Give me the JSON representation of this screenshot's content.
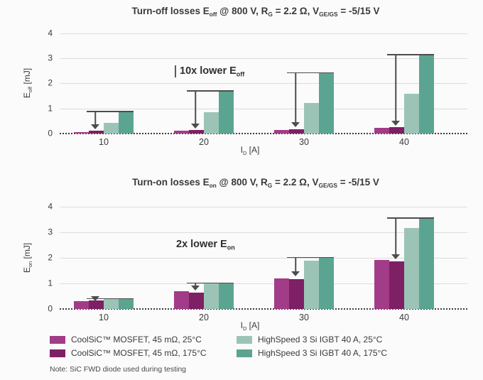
{
  "colors": {
    "series": {
      "coolsic_25": "#a23c88",
      "coolsic_175": "#7d2064",
      "igbt_25": "#9cc4b6",
      "igbt_175": "#5ca492"
    },
    "grid": "#dcdcdc",
    "zero_line": "#3d3d3d",
    "arrow": "#4d4d4d",
    "text": "#3a3a3a",
    "background": "#fbfbfb"
  },
  "legend": {
    "items": [
      {
        "label": "CoolSiC™ MOSFET, 45 mΩ, 25°C",
        "color_key": "coolsic_25"
      },
      {
        "label": "CoolSiC™ MOSFET, 45 mΩ, 175°C",
        "color_key": "coolsic_175"
      },
      {
        "label": "HighSpeed 3 Si IGBT 40 A, 25°C",
        "color_key": "igbt_25"
      },
      {
        "label": "HighSpeed 3 Si IGBT 40 A, 175°C",
        "color_key": "igbt_175"
      }
    ],
    "note": "Note: SiC FWD diode used during testing"
  },
  "chart_data": [
    {
      "type": "bar",
      "title": "Turn-off losses E_off @ 800 V, R_G = 2.2 Ω, V_GE/GS = -5/15 V",
      "title_parts": [
        {
          "t": "Turn-off losses E"
        },
        {
          "s": "off"
        },
        {
          "t": " @ 800 V, R"
        },
        {
          "s": "G"
        },
        {
          "t": " = 2.2 Ω, V"
        },
        {
          "s": "GE/GS"
        },
        {
          "t": " = -5/15 V"
        }
      ],
      "ylabel": "E_off [mJ]",
      "ylabel_parts": [
        {
          "t": "E"
        },
        {
          "s": "off"
        },
        {
          "t": " [mJ]"
        }
      ],
      "xlabel": "I_D [A]",
      "xlabel_parts": [
        {
          "t": "I"
        },
        {
          "s": "D"
        },
        {
          "t": " [A]"
        }
      ],
      "annotation": "10x lower E_off",
      "annotation_parts": [
        {
          "t": "10x lower E"
        },
        {
          "s": "off"
        }
      ],
      "categories": [
        "10",
        "20",
        "30",
        "40"
      ],
      "series": [
        {
          "name": "CoolSiC™ MOSFET, 45 mΩ, 25°C",
          "color_key": "coolsic_25",
          "values": [
            0.07,
            0.1,
            0.14,
            0.22
          ]
        },
        {
          "name": "CoolSiC™ MOSFET, 45 mΩ, 175°C",
          "color_key": "coolsic_175",
          "values": [
            0.1,
            0.13,
            0.17,
            0.25
          ]
        },
        {
          "name": "HighSpeed 3 Si IGBT 40 A, 25°C",
          "color_key": "igbt_25",
          "values": [
            0.42,
            0.85,
            1.22,
            1.6
          ]
        },
        {
          "name": "HighSpeed 3 Si IGBT 40 A, 175°C",
          "color_key": "igbt_175",
          "values": [
            0.9,
            1.72,
            2.45,
            3.17
          ]
        }
      ],
      "ylim": [
        0,
        4
      ],
      "yticks": [
        0,
        1,
        2,
        3,
        4
      ],
      "grid": true,
      "arrows": [
        {
          "group": 0,
          "from": 0.9,
          "to": 0.16
        },
        {
          "group": 1,
          "from": 1.72,
          "to": 0.2
        },
        {
          "group": 2,
          "from": 2.45,
          "to": 0.25
        },
        {
          "group": 3,
          "from": 3.17,
          "to": 0.32
        }
      ]
    },
    {
      "type": "bar",
      "title": "Turn-on losses E_on @ 800 V, R_G = 2.2 Ω, V_GE/GS = -5/15 V",
      "title_parts": [
        {
          "t": "Turn-on losses E"
        },
        {
          "s": "on"
        },
        {
          "t": " @ 800 V, R"
        },
        {
          "s": "G"
        },
        {
          "t": " = 2.2 Ω, V"
        },
        {
          "s": "GE/GS"
        },
        {
          "t": " = -5/15 V"
        }
      ],
      "ylabel": "E_on [mJ]",
      "ylabel_parts": [
        {
          "t": "E"
        },
        {
          "s": "on"
        },
        {
          "t": " [mJ]"
        }
      ],
      "xlabel": "I_D [A]",
      "xlabel_parts": [
        {
          "t": "I"
        },
        {
          "s": "D"
        },
        {
          "t": " [A]"
        }
      ],
      "annotation": "2x lower E_on",
      "annotation_parts": [
        {
          "t": "2x lower E"
        },
        {
          "s": "on"
        }
      ],
      "categories": [
        "10",
        "20",
        "30",
        "40"
      ],
      "series": [
        {
          "name": "CoolSiC™ MOSFET, 45 mΩ, 25°C",
          "color_key": "coolsic_25",
          "values": [
            0.3,
            0.7,
            1.19,
            1.92
          ]
        },
        {
          "name": "CoolSiC™ MOSFET, 45 mΩ, 175°C",
          "color_key": "coolsic_175",
          "values": [
            0.33,
            0.64,
            1.17,
            1.86
          ]
        },
        {
          "name": "HighSpeed 3 Si IGBT 40 A, 25°C",
          "color_key": "igbt_25",
          "values": [
            0.38,
            1.01,
            1.89,
            3.17
          ]
        },
        {
          "name": "HighSpeed 3 Si IGBT 40 A, 175°C",
          "color_key": "igbt_175",
          "values": [
            0.43,
            1.04,
            2.03,
            3.57
          ]
        }
      ],
      "ylim": [
        0,
        4
      ],
      "yticks": [
        0,
        1,
        2,
        3,
        4
      ],
      "grid": true,
      "arrows": [
        {
          "group": 0,
          "from": 0.43,
          "to": 0.31
        },
        {
          "group": 1,
          "from": 1.04,
          "to": 0.72
        },
        {
          "group": 2,
          "from": 2.03,
          "to": 1.28
        },
        {
          "group": 3,
          "from": 3.57,
          "to": 1.95
        }
      ]
    }
  ]
}
